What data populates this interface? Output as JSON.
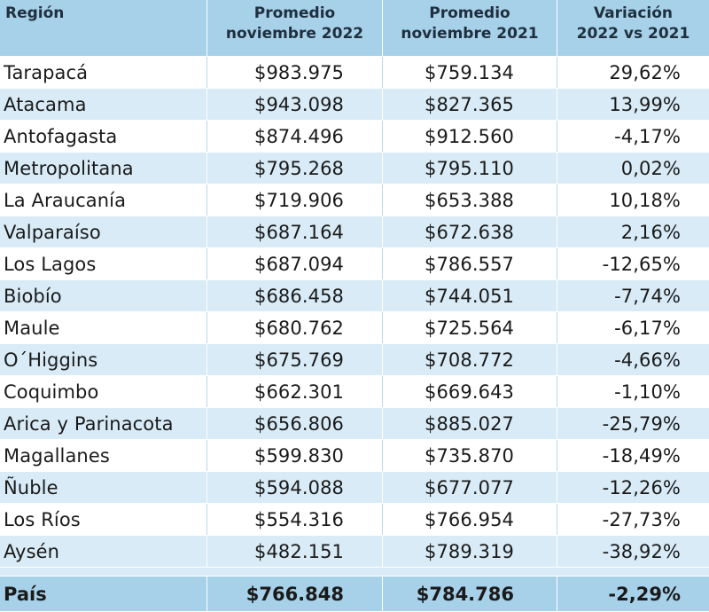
{
  "header": {
    "region": "Región",
    "col2_line1": "Promedio",
    "col2_line2": "noviembre 2022",
    "col3_line1": "Promedio",
    "col3_line2": "noviembre 2021",
    "col4_line1": "Variación",
    "col4_line2": "2022 vs 2021"
  },
  "rows": [
    {
      "region": "Tarapacá",
      "nov2022": "$983.975",
      "nov2021": "$759.134",
      "variation": "29,62%"
    },
    {
      "region": "Atacama",
      "nov2022": "$943.098",
      "nov2021": "$827.365",
      "variation": "13,99%"
    },
    {
      "region": "Antofagasta",
      "nov2022": "$874.496",
      "nov2021": "$912.560",
      "variation": "-4,17%"
    },
    {
      "region": "Metropolitana",
      "nov2022": "$795.268",
      "nov2021": "$795.110",
      "variation": "0,02%"
    },
    {
      "region": "La Araucanía",
      "nov2022": "$719.906",
      "nov2021": "$653.388",
      "variation": "10,18%"
    },
    {
      "region": "Valparaíso",
      "nov2022": "$687.164",
      "nov2021": "$672.638",
      "variation": "2,16%"
    },
    {
      "region": "Los Lagos",
      "nov2022": "$687.094",
      "nov2021": "$786.557",
      "variation": "-12,65%"
    },
    {
      "region": "Biobío",
      "nov2022": "$686.458",
      "nov2021": "$744.051",
      "variation": "-7,74%"
    },
    {
      "region": "Maule",
      "nov2022": "$680.762",
      "nov2021": "$725.564",
      "variation": "-6,17%"
    },
    {
      "region": "O´Higgins",
      "nov2022": "$675.769",
      "nov2021": "$708.772",
      "variation": "-4,66%"
    },
    {
      "region": "Coquimbo",
      "nov2022": "$662.301",
      "nov2021": "$669.643",
      "variation": "-1,10%"
    },
    {
      "region": "Arica y Parinacota",
      "nov2022": "$656.806",
      "nov2021": "$885.027",
      "variation": "-25,79%"
    },
    {
      "region": "Magallanes",
      "nov2022": "$599.830",
      "nov2021": "$735.870",
      "variation": "-18,49%"
    },
    {
      "region": "Ñuble",
      "nov2022": "$594.088",
      "nov2021": "$677.077",
      "variation": "-12,26%"
    },
    {
      "region": "Los Ríos",
      "nov2022": "$554.316",
      "nov2021": "$766.954",
      "variation": "-27,73%"
    },
    {
      "region": "Aysén",
      "nov2022": "$482.151",
      "nov2021": "$789.319",
      "variation": "-38,92%"
    }
  ],
  "total": {
    "region": "País",
    "nov2022": "$766.848",
    "nov2021": "$784.786",
    "variation": "-2,29%"
  },
  "colors": {
    "header_bg": "#a7d0e9",
    "stripe_bg": "#d8ebf6",
    "row_bg": "#ffffff"
  }
}
